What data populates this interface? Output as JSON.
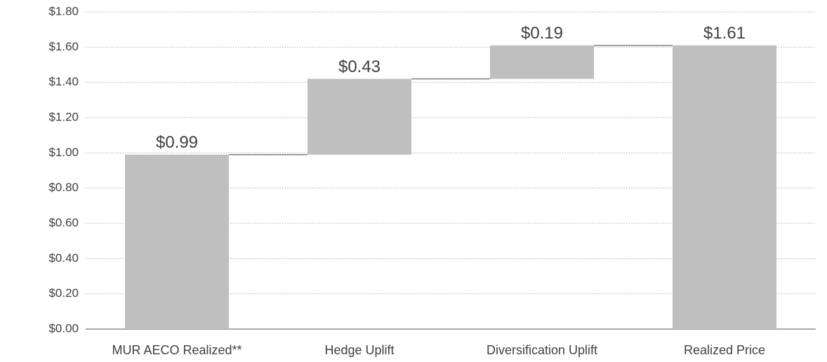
{
  "chart_data": {
    "type": "waterfall",
    "categories": [
      "MUR AECO Realized**",
      "Hedge Uplift",
      "Diversification Uplift",
      "Realized Price"
    ],
    "values": [
      0.99,
      0.43,
      0.19,
      1.61
    ],
    "value_labels": [
      "$0.99",
      "$0.43",
      "$0.19",
      "$1.61"
    ],
    "color": "#bfbfbf",
    "ylim": [
      0,
      1.8
    ],
    "yticks": [
      {
        "value": 0,
        "label": "$0.00"
      },
      {
        "value": 0.2,
        "label": "$0.20"
      },
      {
        "value": 0.4,
        "label": "$0.40"
      },
      {
        "value": 0.6,
        "label": "$0.60"
      },
      {
        "value": 0.8,
        "label": "$0.80"
      },
      {
        "value": 1.0,
        "label": "$1.00"
      },
      {
        "value": 1.2,
        "label": "$1.20"
      },
      {
        "value": 1.4,
        "label": "$1.40"
      },
      {
        "value": 1.6,
        "label": "$1.60"
      },
      {
        "value": 1.8,
        "label": "$1.80"
      }
    ],
    "grid": true
  }
}
